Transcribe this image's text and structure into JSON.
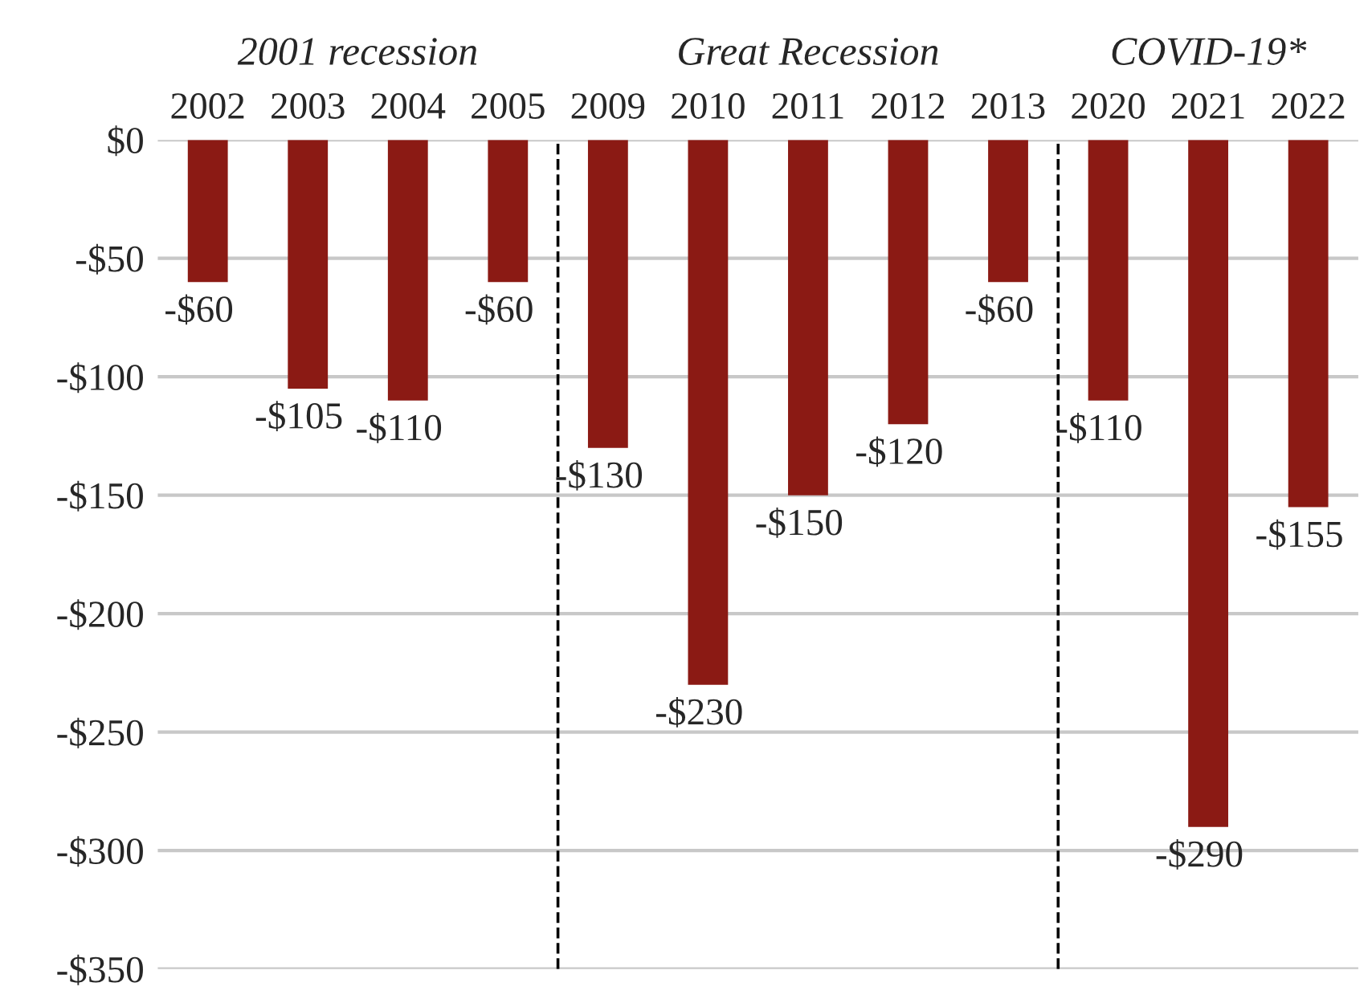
{
  "chart_data": {
    "type": "bar",
    "categories": [
      "2002",
      "2003",
      "2004",
      "2005",
      "2009",
      "2010",
      "2011",
      "2012",
      "2013",
      "2020",
      "2021",
      "2022"
    ],
    "values": [
      -60,
      -105,
      -110,
      -60,
      -130,
      -230,
      -150,
      -120,
      -60,
      -110,
      -290,
      -155
    ],
    "value_labels": [
      "-$60",
      "-$105",
      "-$110",
      "-$60",
      "-$130",
      "-$230",
      "-$150",
      "-$120",
      "-$60",
      "-$110",
      "-$290",
      "-$155"
    ],
    "color": "#8b1a14",
    "ylim": [
      -350,
      0
    ],
    "yticks": [
      {
        "value": 0,
        "label": "$0"
      },
      {
        "value": -50,
        "label": "-$50"
      },
      {
        "value": -100,
        "label": "-$100"
      },
      {
        "value": -150,
        "label": "-$150"
      },
      {
        "value": -200,
        "label": "-$200"
      },
      {
        "value": -250,
        "label": "-$250"
      },
      {
        "value": -300,
        "label": "-$300"
      },
      {
        "value": -350,
        "label": "-$350"
      }
    ],
    "grid": "y",
    "annotations": [
      "2001 recession",
      "Great Recession",
      "COVID-19*"
    ]
  }
}
